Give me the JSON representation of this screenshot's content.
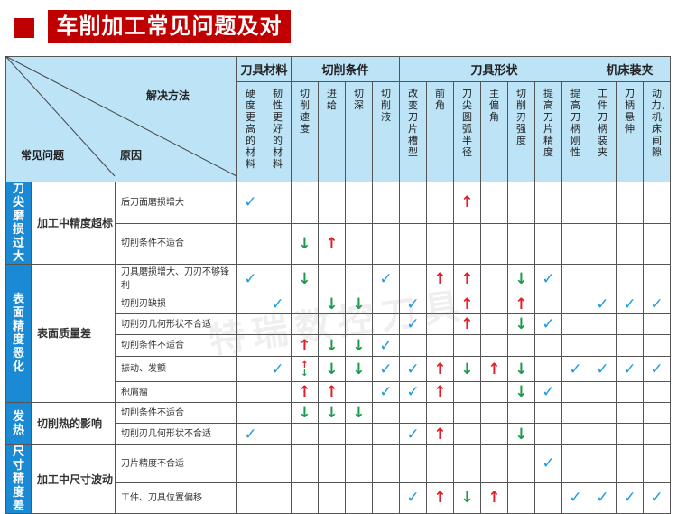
{
  "title": "车削加工常见问题及对策",
  "colors": {
    "title_bg": "#c00000",
    "header_bg": "#bde3f7",
    "category_bg": "#1a8ad4",
    "check": "#1a9ae0",
    "up": "#e0202a",
    "down": "#1a9a4a"
  },
  "legend_marks": {
    "check": "✓",
    "up": "↑",
    "down": "↓"
  },
  "header": {
    "solution": "解决方法",
    "problem": "常见问题",
    "reason": "原因",
    "groups": [
      {
        "label": "刀具材料",
        "columns": [
          "硬度更高的材料",
          "韧性更好的材料"
        ]
      },
      {
        "label": "切削条件",
        "columns": [
          "切削速度",
          "进给",
          "切深",
          "切削液"
        ]
      },
      {
        "label": "刀具形状",
        "columns": [
          "改变刀片槽型",
          "前角",
          "刀尖圆弧半径",
          "主偏角",
          "切削刃强度",
          "提高刀片精度",
          "提高刀柄刚性"
        ]
      },
      {
        "label": "机床装夹",
        "columns": [
          "工件刀柄装夹",
          "刀柄悬伸",
          "动力、机床间隙"
        ]
      }
    ]
  },
  "sections": [
    {
      "category": "刀尖磨损过大",
      "problem": "加工中精度超标",
      "rows": [
        {
          "reason": "后刀面磨损增大",
          "marks": [
            "check",
            "",
            "",
            "",
            "",
            "",
            "",
            "",
            "up",
            "",
            "",
            "",
            "",
            "",
            "",
            ""
          ]
        },
        {
          "reason": "切削条件不适合",
          "marks": [
            "",
            "",
            "down",
            "up",
            "",
            "",
            "",
            "",
            "",
            "",
            "",
            "",
            "",
            "",
            "",
            ""
          ]
        }
      ]
    },
    {
      "category": "表面精度恶化",
      "problem": "表面质量差",
      "rows": [
        {
          "reason": "刀具磨损增大、刀刃不够锋利",
          "marks": [
            "check",
            "",
            "down",
            "",
            "",
            "check",
            "",
            "up",
            "up",
            "",
            "down",
            "check",
            "",
            "",
            "",
            ""
          ]
        },
        {
          "reason": "切削刃缺损",
          "marks": [
            "",
            "check",
            "",
            "down",
            "down",
            "",
            "check",
            "",
            "up",
            "",
            "up",
            "",
            "",
            "check",
            "check",
            "check"
          ]
        },
        {
          "reason": "切削刃几何形状不合适",
          "marks": [
            "",
            "",
            "",
            "",
            "",
            "",
            "check",
            "",
            "up",
            "",
            "down",
            "check",
            "",
            "",
            "",
            ""
          ]
        },
        {
          "reason": "切削条件不适合",
          "marks": [
            "",
            "",
            "up",
            "down",
            "down",
            "check",
            "",
            "",
            "",
            "",
            "",
            "",
            "",
            "",
            "",
            ""
          ]
        },
        {
          "reason": "振动、发颤",
          "marks": [
            "",
            "check",
            "updown",
            "down",
            "down",
            "check",
            "check",
            "up",
            "down",
            "up",
            "down",
            "",
            "check",
            "check",
            "check",
            "check"
          ]
        },
        {
          "reason": "积屑瘤",
          "marks": [
            "",
            "",
            "up",
            "up",
            "",
            "check",
            "check",
            "up",
            "",
            "",
            "down",
            "check",
            "",
            "",
            "",
            ""
          ]
        }
      ]
    },
    {
      "category": "发热",
      "problem": "切削热的影响",
      "rows": [
        {
          "reason": "切削条件不适合",
          "marks": [
            "",
            "",
            "down",
            "down",
            "down",
            "",
            "",
            "",
            "",
            "",
            "",
            "",
            "",
            "",
            "",
            ""
          ]
        },
        {
          "reason": "切削刃几何形状不合适",
          "marks": [
            "check",
            "",
            "",
            "",
            "",
            "",
            "check",
            "up",
            "",
            "",
            "down",
            "",
            "",
            "",
            "",
            ""
          ]
        }
      ]
    },
    {
      "category": "尺寸精度差",
      "problem": "加工中尺寸波动",
      "rows": [
        {
          "reason": "刀片精度不合适",
          "marks": [
            "",
            "",
            "",
            "",
            "",
            "",
            "",
            "",
            "",
            "",
            "",
            "check",
            "",
            "",
            "",
            ""
          ]
        },
        {
          "reason": "工件、刀具位置偏移",
          "marks": [
            "",
            "",
            "",
            "",
            "",
            "",
            "check",
            "up",
            "down",
            "up",
            "",
            "",
            "check",
            "check",
            "check",
            "check"
          ]
        }
      ]
    }
  ],
  "watermark": "特瑞数控刀具"
}
